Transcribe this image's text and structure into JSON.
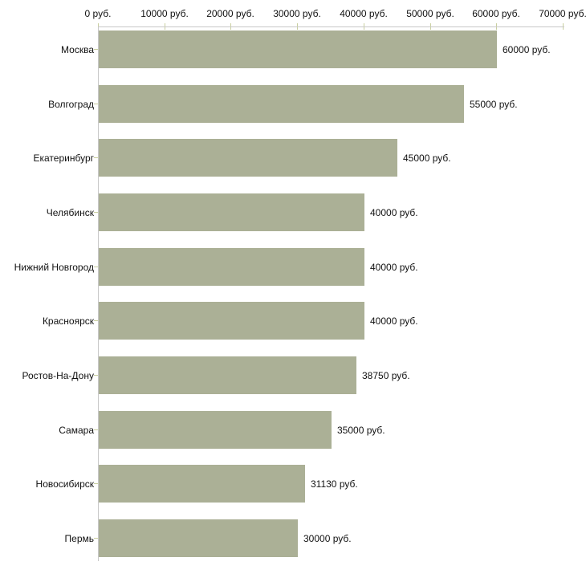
{
  "chart_data": {
    "type": "bar",
    "orientation": "horizontal",
    "title": "",
    "xlabel": "",
    "ylabel": "",
    "categories": [
      "Москва",
      "Волгоград",
      "Екатеринбург",
      "Челябинск",
      "Нижний Новгород",
      "Красноярск",
      "Ростов-На-Дону",
      "Самара",
      "Новосибирск",
      "Пермь"
    ],
    "values": [
      60000,
      55000,
      45000,
      40000,
      40000,
      40000,
      38750,
      35000,
      31130,
      30000
    ],
    "value_labels": [
      "60000 руб.",
      "55000 руб.",
      "45000 руб.",
      "40000 руб.",
      "40000 руб.",
      "40000 руб.",
      "38750 руб.",
      "35000 руб.",
      "31130 руб.",
      "30000 руб."
    ],
    "x_axis": {
      "position": "top",
      "range": [
        0,
        70000
      ],
      "ticks": [
        0,
        10000,
        20000,
        30000,
        40000,
        50000,
        60000,
        70000
      ],
      "tick_labels": [
        "0 руб.",
        "10000 руб.",
        "20000 руб.",
        "30000 руб.",
        "40000 руб.",
        "50000 руб.",
        "60000 руб.",
        "70000 руб."
      ]
    },
    "grid": false,
    "legend": false,
    "colors": {
      "bar": "#abb096",
      "axis_line": "#c8c8c8",
      "tick_mark": "#c9cf9f",
      "text": "#111111",
      "background": "#ffffff"
    }
  }
}
